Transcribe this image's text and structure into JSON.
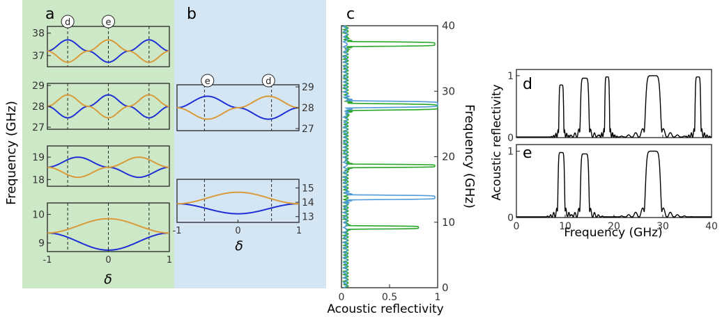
{
  "colors": {
    "panel_a_bg": "#cde8c6",
    "panel_b_bg": "#d4e6f3",
    "blue_band": "#1f2fd6",
    "orange_band": "#d99a3a",
    "green_spectrum": "#2aa52a",
    "lightblue_spectrum": "#4f9ad9",
    "black_trace": "#000000"
  },
  "panel_labels": {
    "a": "a",
    "b": "b",
    "c": "c",
    "d": "d",
    "e": "e"
  },
  "circle_marks": {
    "d": "d",
    "e": "e"
  },
  "axis_labels": {
    "a_ylabel": "Frequency (GHz)",
    "a_xlabel": "δ",
    "b_xlabel": "δ",
    "c_xlabel": "Acoustic reflectivity",
    "c_ylabel": "Frequency (GHz)",
    "de_xlabel": "Frequency (GHz)",
    "de_ylabel": "Acoustic reflectivity"
  },
  "delta_ticks": [
    "-1",
    "0",
    "1"
  ],
  "chart_data": [
    {
      "id": "a1",
      "type": "line",
      "xlim": [
        -1,
        1
      ],
      "ylim": [
        36.5,
        38.3
      ],
      "yticks": [
        "37",
        "38"
      ],
      "xtick_labels": [
        "-1",
        "0",
        "1"
      ],
      "dashed_x": [
        -0.667,
        0,
        0.667
      ],
      "series": [
        {
          "color": "blue",
          "values_fn": "37.2 + 0.5*cos(4.71*(x+0.667))"
        },
        {
          "color": "orange",
          "values_fn": "37.2 - 0.5*cos(4.71*(x+0.667))"
        }
      ],
      "sample_points": {
        "x": [
          -1,
          -0.667,
          -0.333,
          0,
          0.333,
          0.667,
          1
        ],
        "blue": [
          37.2,
          37.7,
          37.2,
          36.7,
          37.2,
          37.7,
          37.2
        ],
        "orange": [
          37.2,
          36.7,
          37.2,
          37.7,
          37.2,
          36.7,
          37.2
        ]
      }
    },
    {
      "id": "a2",
      "type": "line",
      "xlim": [
        -1,
        1
      ],
      "ylim": [
        26.9,
        29.1
      ],
      "yticks": [
        "27",
        "28",
        "29"
      ],
      "dashed_x": [
        -0.667,
        0,
        0.667
      ],
      "sample_points": {
        "x": [
          -1,
          -0.667,
          -0.333,
          0,
          0.333,
          0.667,
          1
        ],
        "blue": [
          28.0,
          27.45,
          28.0,
          28.55,
          28.0,
          27.45,
          28.0
        ],
        "orange": [
          28.0,
          28.55,
          28.0,
          27.45,
          28.0,
          28.55,
          28.0
        ]
      }
    },
    {
      "id": "a3",
      "type": "line",
      "xlim": [
        -1,
        1
      ],
      "ylim": [
        17.7,
        19.5
      ],
      "yticks": [
        "18",
        "19"
      ],
      "dashed_x": [
        -0.667,
        0,
        0.667
      ],
      "sample_points": {
        "x": [
          -1,
          -0.5,
          0,
          0.5,
          1
        ],
        "blue": [
          18.55,
          19.0,
          18.55,
          18.1,
          18.55
        ],
        "orange": [
          18.55,
          18.1,
          18.55,
          19.0,
          18.55
        ]
      }
    },
    {
      "id": "a4",
      "type": "line",
      "xlim": [
        -1,
        1
      ],
      "ylim": [
        8.7,
        10.4
      ],
      "yticks": [
        "9",
        "10"
      ],
      "xtick_labels": [
        "-1",
        "0",
        "1"
      ],
      "dashed_x": [
        -0.667,
        0,
        0.667
      ],
      "sample_points": {
        "x": [
          -1,
          0,
          1
        ],
        "blue": [
          9.35,
          8.75,
          9.35
        ],
        "orange": [
          9.35,
          9.85,
          9.35
        ]
      }
    },
    {
      "id": "b1",
      "type": "line",
      "xlim": [
        -1,
        1
      ],
      "ylim": [
        26.9,
        29.1
      ],
      "yticks": [
        "27",
        "28",
        "29"
      ],
      "dashed_x": [
        -0.55,
        0.55
      ],
      "sample_points": {
        "x": [
          -1,
          -0.5,
          0,
          0.5,
          1
        ],
        "blue": [
          28.0,
          28.55,
          28.0,
          27.45,
          28.0
        ],
        "orange": [
          28.0,
          27.45,
          28.0,
          28.55,
          28.0
        ]
      }
    },
    {
      "id": "b2",
      "type": "line",
      "xlim": [
        -1,
        1
      ],
      "ylim": [
        12.6,
        15.6
      ],
      "yticks": [
        "13",
        "14",
        "15"
      ],
      "xtick_labels": [
        "-1",
        "0",
        "1"
      ],
      "dashed_x": [
        -0.55,
        0.55
      ],
      "sample_points": {
        "x": [
          -1,
          0,
          1
        ],
        "blue": [
          13.9,
          13.2,
          13.9
        ],
        "orange": [
          13.9,
          14.7,
          13.9
        ]
      }
    },
    {
      "id": "c",
      "type": "line",
      "xlim": [
        0,
        1
      ],
      "ylim": [
        0,
        40
      ],
      "xticks": [
        "0",
        "0.5",
        "1"
      ],
      "yticks": [
        "0",
        "10",
        "20",
        "30",
        "40"
      ],
      "series": [
        {
          "color": "green",
          "peaks": [
            {
              "f": 9.2,
              "r": 0.8,
              "w": 0.25
            },
            {
              "f": 18.6,
              "r": 0.97,
              "w": 0.25
            },
            {
              "f": 27.6,
              "r": 1.0,
              "w": 0.5
            },
            {
              "f": 37.2,
              "r": 0.97,
              "w": 0.35
            }
          ]
        },
        {
          "color": "lightblue",
          "peaks": [
            {
              "f": 13.8,
              "r": 0.97,
              "w": 0.35
            },
            {
              "f": 28.0,
              "r": 1.0,
              "w": 0.5
            }
          ]
        }
      ]
    },
    {
      "id": "d",
      "type": "line",
      "xlim": [
        0,
        40
      ],
      "ylim": [
        0,
        1.1
      ],
      "xticks": [
        "0",
        "10",
        "20",
        "30",
        "40"
      ],
      "yticks": [
        "0",
        "1"
      ],
      "peaks": [
        {
          "f": 9.2,
          "r": 0.85,
          "w": 0.5
        },
        {
          "f": 14.0,
          "r": 0.96,
          "w": 0.9
        },
        {
          "f": 18.6,
          "r": 0.98,
          "w": 0.5
        },
        {
          "f": 28.0,
          "r": 1.0,
          "w": 1.6
        },
        {
          "f": 37.2,
          "r": 0.98,
          "w": 0.6
        }
      ]
    },
    {
      "id": "e",
      "type": "line",
      "xlim": [
        0,
        40
      ],
      "ylim": [
        0,
        1.1
      ],
      "xticks": [
        "0",
        "10",
        "20",
        "30",
        "40"
      ],
      "yticks": [
        "0",
        "1"
      ],
      "peaks": [
        {
          "f": 9.2,
          "r": 0.98,
          "w": 0.7
        },
        {
          "f": 14.0,
          "r": 0.96,
          "w": 0.9
        },
        {
          "f": 28.0,
          "r": 1.0,
          "w": 1.6
        }
      ]
    }
  ]
}
